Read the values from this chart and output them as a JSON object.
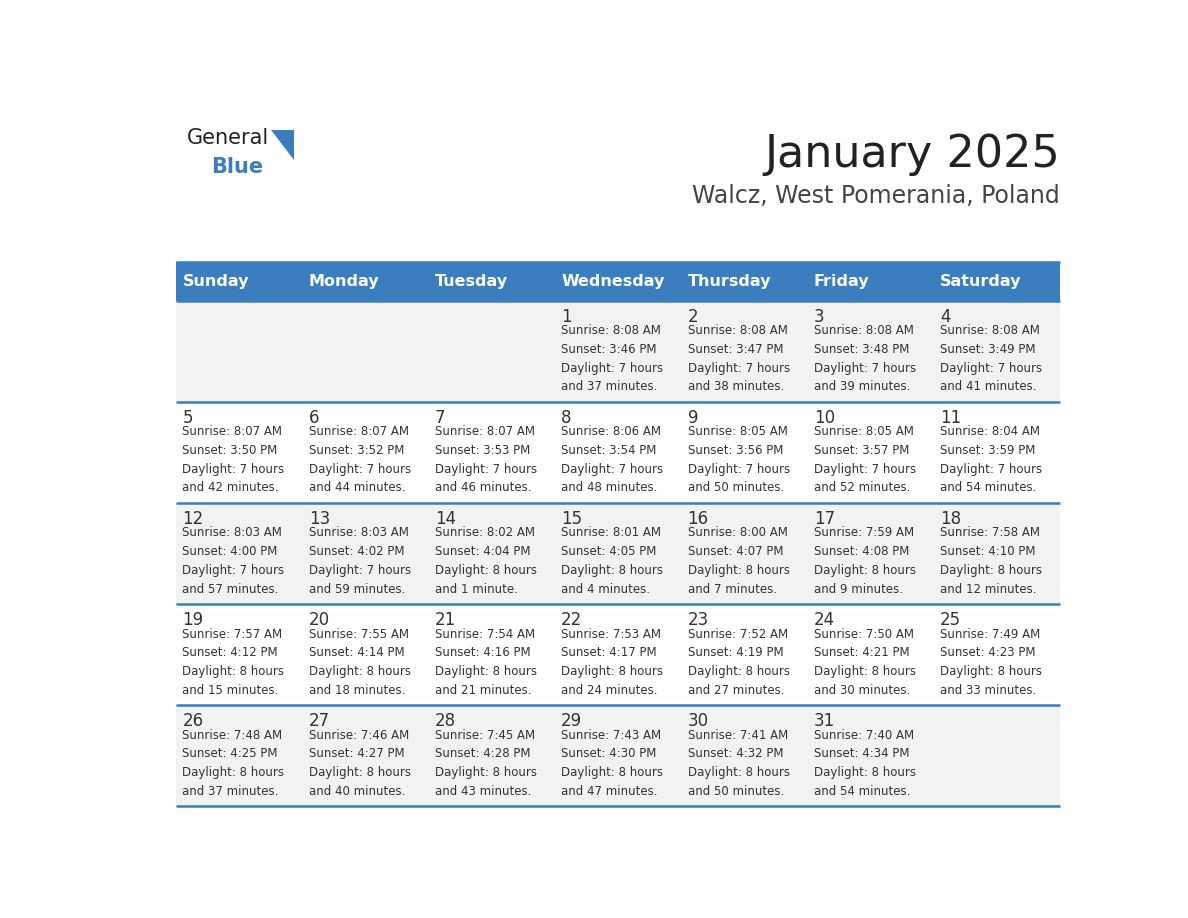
{
  "title": "January 2025",
  "subtitle": "Walcz, West Pomerania, Poland",
  "days_of_week": [
    "Sunday",
    "Monday",
    "Tuesday",
    "Wednesday",
    "Thursday",
    "Friday",
    "Saturday"
  ],
  "header_bg": "#3a7ebf",
  "header_text": "#ffffff",
  "row_bg_odd": "#f2f2f2",
  "row_bg_even": "#ffffff",
  "cell_text_color": "#333333",
  "day_num_color": "#333333",
  "line_color": "#3a7ebf",
  "title_color": "#222222",
  "subtitle_color": "#444444",
  "logo_general_color": "#222222",
  "logo_blue_color": "#3a7ebf",
  "calendar_data": [
    [
      null,
      null,
      null,
      {
        "day": 1,
        "sunrise": "8:08 AM",
        "sunset": "3:46 PM",
        "daylight": "7 hours and 37 minutes."
      },
      {
        "day": 2,
        "sunrise": "8:08 AM",
        "sunset": "3:47 PM",
        "daylight": "7 hours and 38 minutes."
      },
      {
        "day": 3,
        "sunrise": "8:08 AM",
        "sunset": "3:48 PM",
        "daylight": "7 hours and 39 minutes."
      },
      {
        "day": 4,
        "sunrise": "8:08 AM",
        "sunset": "3:49 PM",
        "daylight": "7 hours and 41 minutes."
      }
    ],
    [
      {
        "day": 5,
        "sunrise": "8:07 AM",
        "sunset": "3:50 PM",
        "daylight": "7 hours and 42 minutes."
      },
      {
        "day": 6,
        "sunrise": "8:07 AM",
        "sunset": "3:52 PM",
        "daylight": "7 hours and 44 minutes."
      },
      {
        "day": 7,
        "sunrise": "8:07 AM",
        "sunset": "3:53 PM",
        "daylight": "7 hours and 46 minutes."
      },
      {
        "day": 8,
        "sunrise": "8:06 AM",
        "sunset": "3:54 PM",
        "daylight": "7 hours and 48 minutes."
      },
      {
        "day": 9,
        "sunrise": "8:05 AM",
        "sunset": "3:56 PM",
        "daylight": "7 hours and 50 minutes."
      },
      {
        "day": 10,
        "sunrise": "8:05 AM",
        "sunset": "3:57 PM",
        "daylight": "7 hours and 52 minutes."
      },
      {
        "day": 11,
        "sunrise": "8:04 AM",
        "sunset": "3:59 PM",
        "daylight": "7 hours and 54 minutes."
      }
    ],
    [
      {
        "day": 12,
        "sunrise": "8:03 AM",
        "sunset": "4:00 PM",
        "daylight": "7 hours and 57 minutes."
      },
      {
        "day": 13,
        "sunrise": "8:03 AM",
        "sunset": "4:02 PM",
        "daylight": "7 hours and 59 minutes."
      },
      {
        "day": 14,
        "sunrise": "8:02 AM",
        "sunset": "4:04 PM",
        "daylight": "8 hours and 1 minute."
      },
      {
        "day": 15,
        "sunrise": "8:01 AM",
        "sunset": "4:05 PM",
        "daylight": "8 hours and 4 minutes."
      },
      {
        "day": 16,
        "sunrise": "8:00 AM",
        "sunset": "4:07 PM",
        "daylight": "8 hours and 7 minutes."
      },
      {
        "day": 17,
        "sunrise": "7:59 AM",
        "sunset": "4:08 PM",
        "daylight": "8 hours and 9 minutes."
      },
      {
        "day": 18,
        "sunrise": "7:58 AM",
        "sunset": "4:10 PM",
        "daylight": "8 hours and 12 minutes."
      }
    ],
    [
      {
        "day": 19,
        "sunrise": "7:57 AM",
        "sunset": "4:12 PM",
        "daylight": "8 hours and 15 minutes."
      },
      {
        "day": 20,
        "sunrise": "7:55 AM",
        "sunset": "4:14 PM",
        "daylight": "8 hours and 18 minutes."
      },
      {
        "day": 21,
        "sunrise": "7:54 AM",
        "sunset": "4:16 PM",
        "daylight": "8 hours and 21 minutes."
      },
      {
        "day": 22,
        "sunrise": "7:53 AM",
        "sunset": "4:17 PM",
        "daylight": "8 hours and 24 minutes."
      },
      {
        "day": 23,
        "sunrise": "7:52 AM",
        "sunset": "4:19 PM",
        "daylight": "8 hours and 27 minutes."
      },
      {
        "day": 24,
        "sunrise": "7:50 AM",
        "sunset": "4:21 PM",
        "daylight": "8 hours and 30 minutes."
      },
      {
        "day": 25,
        "sunrise": "7:49 AM",
        "sunset": "4:23 PM",
        "daylight": "8 hours and 33 minutes."
      }
    ],
    [
      {
        "day": 26,
        "sunrise": "7:48 AM",
        "sunset": "4:25 PM",
        "daylight": "8 hours and 37 minutes."
      },
      {
        "day": 27,
        "sunrise": "7:46 AM",
        "sunset": "4:27 PM",
        "daylight": "8 hours and 40 minutes."
      },
      {
        "day": 28,
        "sunrise": "7:45 AM",
        "sunset": "4:28 PM",
        "daylight": "8 hours and 43 minutes."
      },
      {
        "day": 29,
        "sunrise": "7:43 AM",
        "sunset": "4:30 PM",
        "daylight": "8 hours and 47 minutes."
      },
      {
        "day": 30,
        "sunrise": "7:41 AM",
        "sunset": "4:32 PM",
        "daylight": "8 hours and 50 minutes."
      },
      {
        "day": 31,
        "sunrise": "7:40 AM",
        "sunset": "4:34 PM",
        "daylight": "8 hours and 54 minutes."
      },
      null
    ]
  ]
}
